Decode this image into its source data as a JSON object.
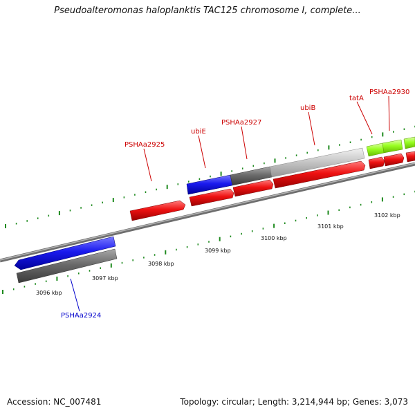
{
  "title": "Pseudoalteromonas haloplanktis TAC125 chromosome I, complete...",
  "footer": {
    "accession": "Accession: NC_007481",
    "topology": "Topology: circular; Length: 3,214,944 bp; Genes: 3,073"
  },
  "colors": {
    "red": "#ee1111",
    "blue": "#1a1aee",
    "dark_gray": "#6b6b6b",
    "light_gray": "#c8c8c8",
    "lime": "#99ff22",
    "tick_green": "#1e8a1e",
    "backbone": "#8c8c8c",
    "label_red": "#cc0000",
    "label_blue": "#0000cc"
  },
  "scale_labels": [
    "3096 kbp",
    "3097 kbp",
    "3098 kbp",
    "3099 kbp",
    "3100 kbp",
    "3101 kbp",
    "3102 kbp"
  ],
  "gene_labels": [
    {
      "text": "PSHAa2924",
      "color": "blue"
    },
    {
      "text": "PSHAa2925",
      "color": "red"
    },
    {
      "text": "ubiE",
      "color": "red"
    },
    {
      "text": "PSHAa2927",
      "color": "red"
    },
    {
      "text": "ubiB",
      "color": "red"
    },
    {
      "text": "tatA",
      "color": "red"
    },
    {
      "text": "PSHAa2930",
      "color": "red"
    }
  ]
}
